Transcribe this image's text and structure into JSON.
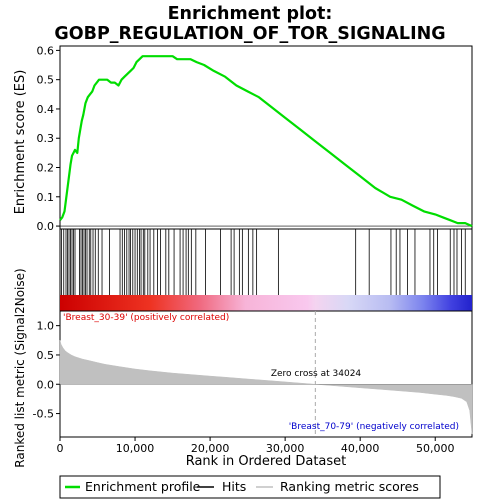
{
  "chart_data": {
    "type": "line",
    "title_line1": "Enrichment plot:",
    "title_line2": "GOBP_REGULATION_OF_TOR_SIGNALING",
    "es_panel": {
      "ylabel": "Enrichment score (ES)",
      "ylim": [
        -0.01,
        0.615
      ],
      "yticks": [
        "0.0",
        "0.1",
        "0.2",
        "0.3",
        "0.4",
        "0.5",
        "0.6"
      ],
      "ytick_values": [
        0.0,
        0.1,
        0.2,
        0.3,
        0.4,
        0.5,
        0.6
      ],
      "series": [
        {
          "name": "Enrichment profile",
          "color": "#00dd00",
          "x": [
            0,
            300,
            600,
            800,
            1000,
            1200,
            1400,
            1600,
            1800,
            2000,
            2300,
            2500,
            2700,
            2900,
            3100,
            3400,
            3700,
            4000,
            4300,
            4600,
            4900,
            5200,
            5500,
            5900,
            6300,
            6800,
            7300,
            7800,
            8200,
            8600,
            9000,
            9400,
            9800,
            10200,
            10600,
            11000,
            11500,
            12000,
            12600,
            13200,
            13800,
            14400,
            15000,
            15600,
            16200,
            16800,
            17400,
            18200,
            19200,
            20500,
            22000,
            23500,
            25000,
            26500,
            28000,
            30000,
            32000,
            34000,
            36000,
            38000,
            40000,
            42000,
            44000,
            45500,
            47000,
            48500,
            50000,
            51000,
            52000,
            53000,
            54000,
            54900
          ],
          "y": [
            0.02,
            0.03,
            0.05,
            0.09,
            0.13,
            0.17,
            0.21,
            0.24,
            0.25,
            0.26,
            0.25,
            0.3,
            0.33,
            0.36,
            0.38,
            0.42,
            0.44,
            0.45,
            0.46,
            0.48,
            0.49,
            0.5,
            0.5,
            0.5,
            0.5,
            0.49,
            0.49,
            0.48,
            0.5,
            0.51,
            0.52,
            0.53,
            0.54,
            0.56,
            0.57,
            0.58,
            0.58,
            0.58,
            0.58,
            0.58,
            0.58,
            0.58,
            0.58,
            0.57,
            0.57,
            0.57,
            0.57,
            0.56,
            0.55,
            0.53,
            0.51,
            0.48,
            0.46,
            0.44,
            0.41,
            0.37,
            0.33,
            0.29,
            0.25,
            0.21,
            0.17,
            0.13,
            0.1,
            0.09,
            0.07,
            0.05,
            0.04,
            0.03,
            0.02,
            0.01,
            0.01,
            0.0
          ]
        }
      ]
    },
    "hits_panel": {
      "name": "Hits",
      "gene_set_hit_ranks": [
        200,
        500,
        800,
        1000,
        1200,
        1400,
        1600,
        1800,
        2000,
        2600,
        2800,
        3000,
        3200,
        3400,
        3600,
        3900,
        4100,
        4400,
        4700,
        5100,
        5600,
        6600,
        8000,
        8300,
        8600,
        8900,
        9200,
        9400,
        9700,
        10000,
        10300,
        10600,
        10800,
        11100,
        11300,
        11700,
        12000,
        12500,
        13000,
        13400,
        14100,
        14500,
        15200,
        16000,
        16400,
        16800,
        17100,
        17500,
        18100,
        19400,
        21400,
        22800,
        23200,
        23900,
        24300,
        25100,
        25700,
        26200,
        29100,
        39400,
        41200,
        44100,
        44800,
        45300,
        46300,
        47300,
        49300,
        49800,
        50300,
        52000,
        52500,
        52900,
        53500,
        54000
      ]
    },
    "ranked_metric_panel": {
      "ylabel": "Ranked list metric (Signal2Noise)",
      "ylim": [
        -0.9,
        1.25
      ],
      "yticks": [
        "-0.5",
        "0.0",
        "0.5",
        "1.0"
      ],
      "ytick_values": [
        -0.5,
        0.0,
        0.5,
        1.0
      ],
      "series": [
        {
          "name": "Ranking metric scores",
          "color": "#c0c0c0",
          "x": [
            0,
            150,
            400,
            700,
            1000,
            1500,
            2000,
            3000,
            4000,
            5000,
            6000,
            8000,
            10000,
            12000,
            15000,
            18000,
            20000,
            22000,
            25000,
            28000,
            31000,
            34024,
            37000,
            40000,
            43000,
            46000,
            48000,
            50000,
            51500,
            52500,
            53500,
            54200,
            54600,
            54900
          ],
          "y": [
            0.75,
            0.68,
            0.62,
            0.57,
            0.54,
            0.5,
            0.47,
            0.43,
            0.4,
            0.37,
            0.34,
            0.3,
            0.26,
            0.23,
            0.19,
            0.16,
            0.14,
            0.12,
            0.09,
            0.06,
            0.03,
            0.0,
            -0.03,
            -0.06,
            -0.09,
            -0.12,
            -0.14,
            -0.17,
            -0.19,
            -0.21,
            -0.24,
            -0.3,
            -0.45,
            -0.85
          ]
        }
      ],
      "zero_cross_label": "Zero cross at 34024",
      "zero_cross_rank": 34024,
      "positive_label": "'Breast_30-39' (positively correlated)",
      "negative_label": "'Breast_70-79' (negatively correlated)",
      "positive_color": "#dd0000",
      "negative_color": "#0000cc"
    },
    "xlabel": "Rank in Ordered Dataset",
    "xlim": [
      0,
      54900
    ],
    "xticks": [
      "0",
      "10,000",
      "20,000",
      "30,000",
      "40,000",
      "50,000"
    ],
    "xtick_values": [
      0,
      10000,
      20000,
      30000,
      40000,
      50000
    ],
    "grid": false,
    "legend_position": "bottom"
  },
  "legend": {
    "items": [
      {
        "label": "Enrichment profile",
        "color": "#00dd00"
      },
      {
        "label": "Hits",
        "color": "#000000"
      },
      {
        "label": "Ranking metric scores",
        "color": "#c0c0c0"
      }
    ]
  }
}
